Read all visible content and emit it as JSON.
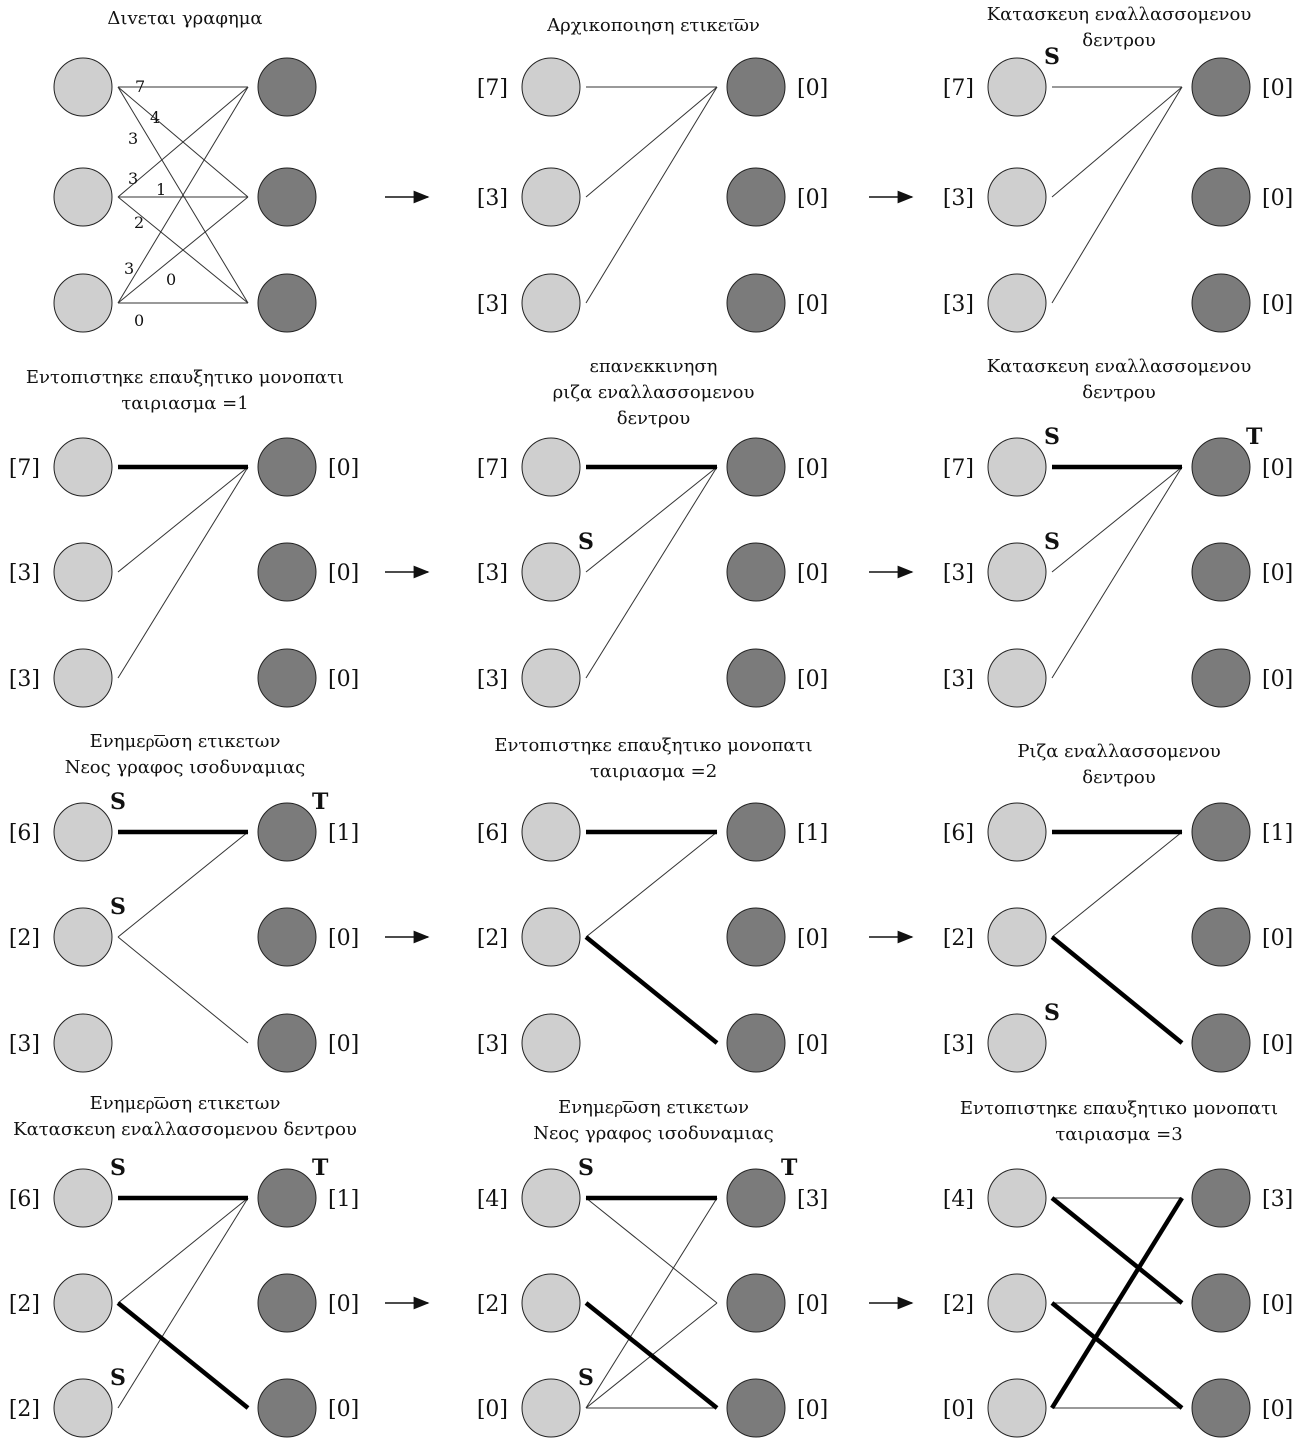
{
  "colors": {
    "left_node": "#cfcfcf",
    "right_node": "#7b7b7b",
    "stroke": "#222222",
    "thin_edge": "#333333",
    "thick_edge": "#000000"
  },
  "panels": [
    {
      "title": [
        "Διvεται γραφημα"
      ],
      "left_labels": [
        "",
        "",
        ""
      ],
      "right_labels": [
        "",
        "",
        ""
      ],
      "weights": [
        "7",
        "4",
        "3",
        "3",
        "1",
        "2",
        "3",
        "0",
        "0"
      ],
      "thin_edges": [
        [
          0,
          0
        ],
        [
          0,
          1
        ],
        [
          0,
          2
        ],
        [
          1,
          0
        ],
        [
          1,
          1
        ],
        [
          1,
          2
        ],
        [
          2,
          0
        ],
        [
          2,
          1
        ],
        [
          2,
          2
        ]
      ],
      "thick_edges": [],
      "marks": []
    },
    {
      "title": [
        "Αρχικοποιηση ετικετ͞ων"
      ],
      "left_labels": [
        "[7]",
        "[3]",
        "[3]"
      ],
      "right_labels": [
        "[0]",
        "[0]",
        "[0]"
      ],
      "thin_edges": [
        [
          0,
          0
        ],
        [
          1,
          0
        ],
        [
          2,
          0
        ]
      ],
      "thick_edges": [],
      "marks": []
    },
    {
      "title": [
        "Κατασκευη εναλλασσομενου",
        "δεντρου"
      ],
      "left_labels": [
        "[7]",
        "[3]",
        "[3]"
      ],
      "right_labels": [
        "[0]",
        "[0]",
        "[0]"
      ],
      "thin_edges": [
        [
          0,
          0
        ],
        [
          1,
          0
        ],
        [
          2,
          0
        ]
      ],
      "thick_edges": [],
      "marks": [
        {
          "side": "L",
          "row": 0,
          "text": "S"
        }
      ]
    },
    {
      "title": [
        "Εντοπιστηκε επαυξητικο μονοπατι",
        "ταιριασμα =1"
      ],
      "left_labels": [
        "[7]",
        "[3]",
        "[3]"
      ],
      "right_labels": [
        "[0]",
        "[0]",
        "[0]"
      ],
      "thin_edges": [
        [
          1,
          0
        ],
        [
          2,
          0
        ]
      ],
      "thick_edges": [
        [
          0,
          0
        ]
      ],
      "marks": []
    },
    {
      "title": [
        "επανεκκινηση",
        "ριζα εναλλασσομενου",
        "δεντρου"
      ],
      "left_labels": [
        "[7]",
        "[3]",
        "[3]"
      ],
      "right_labels": [
        "[0]",
        "[0]",
        "[0]"
      ],
      "thin_edges": [
        [
          1,
          0
        ],
        [
          2,
          0
        ]
      ],
      "thick_edges": [
        [
          0,
          0
        ]
      ],
      "marks": [
        {
          "side": "L",
          "row": 1,
          "text": "S"
        }
      ]
    },
    {
      "title": [
        "Κατασκευη εναλλασσομενου",
        "δεντρου"
      ],
      "left_labels": [
        "[7]",
        "[3]",
        "[3]"
      ],
      "right_labels": [
        "[0]",
        "[0]",
        "[0]"
      ],
      "thin_edges": [
        [
          1,
          0
        ],
        [
          2,
          0
        ]
      ],
      "thick_edges": [
        [
          0,
          0
        ]
      ],
      "marks": [
        {
          "side": "L",
          "row": 0,
          "text": "S"
        },
        {
          "side": "L",
          "row": 1,
          "text": "S"
        },
        {
          "side": "R",
          "row": 0,
          "text": "T"
        }
      ]
    },
    {
      "title": [
        "Ενημερ͞ωση ετικετων",
        "Νεος γραφος ισοδυναμιας"
      ],
      "left_labels": [
        "[6]",
        "[2]",
        "[3]"
      ],
      "right_labels": [
        "[1]",
        "[0]",
        "[0]"
      ],
      "thin_edges": [
        [
          1,
          0
        ],
        [
          1,
          2
        ]
      ],
      "thick_edges": [
        [
          0,
          0
        ]
      ],
      "marks": [
        {
          "side": "L",
          "row": 0,
          "text": "S"
        },
        {
          "side": "L",
          "row": 1,
          "text": "S"
        },
        {
          "side": "R",
          "row": 0,
          "text": "T"
        }
      ]
    },
    {
      "title": [
        "Εντοπιστηκε επαυξητικο μονοπατι",
        "ταιριασμα =2"
      ],
      "left_labels": [
        "[6]",
        "[2]",
        "[3]"
      ],
      "right_labels": [
        "[1]",
        "[0]",
        "[0]"
      ],
      "thin_edges": [
        [
          1,
          0
        ]
      ],
      "thick_edges": [
        [
          0,
          0
        ],
        [
          1,
          2
        ]
      ],
      "marks": []
    },
    {
      "title": [
        "Ριζα εναλλασσομενου",
        "δεντρου"
      ],
      "left_labels": [
        "[6]",
        "[2]",
        "[3]"
      ],
      "right_labels": [
        "[1]",
        "[0]",
        "[0]"
      ],
      "thin_edges": [
        [
          1,
          0
        ]
      ],
      "thick_edges": [
        [
          0,
          0
        ],
        [
          1,
          2
        ]
      ],
      "marks": [
        {
          "side": "L",
          "row": 2,
          "text": "S"
        }
      ]
    },
    {
      "title": [
        "Ενημερ͞ωση ετικετων",
        "Κατασκευη εναλλασσομενου   δεντρου"
      ],
      "left_labels": [
        "[6]",
        "[2]",
        "[2]"
      ],
      "right_labels": [
        "[1]",
        "[0]",
        "[0]"
      ],
      "thin_edges": [
        [
          1,
          0
        ],
        [
          2,
          0
        ]
      ],
      "thick_edges": [
        [
          0,
          0
        ],
        [
          1,
          2
        ]
      ],
      "marks": [
        {
          "side": "L",
          "row": 0,
          "text": "S"
        },
        {
          "side": "L",
          "row": 2,
          "text": "S"
        },
        {
          "side": "R",
          "row": 0,
          "text": "T"
        }
      ]
    },
    {
      "title": [
        "Ενημερ͞ωση ετικετων",
        "Νεος γραφος ισοδυναμιας"
      ],
      "left_labels": [
        "[4]",
        "[2]",
        "[0]"
      ],
      "right_labels": [
        "[3]",
        "[0]",
        "[0]"
      ],
      "thin_edges": [
        [
          0,
          1
        ],
        [
          2,
          0
        ],
        [
          2,
          1
        ],
        [
          2,
          2
        ]
      ],
      "thick_edges": [
        [
          0,
          0
        ],
        [
          1,
          2
        ]
      ],
      "marks": [
        {
          "side": "L",
          "row": 0,
          "text": "S"
        },
        {
          "side": "L",
          "row": 2,
          "text": "S"
        },
        {
          "side": "R",
          "row": 0,
          "text": "T"
        }
      ]
    },
    {
      "title": [
        "Εντοπιστηκε επαυξητικο μονοπατι",
        "ταιριασμα =3"
      ],
      "left_labels": [
        "[4]",
        "[2]",
        "[0]"
      ],
      "right_labels": [
        "[3]",
        "[0]",
        "[0]"
      ],
      "thin_edges": [
        [
          0,
          0
        ],
        [
          1,
          1
        ],
        [
          2,
          2
        ]
      ],
      "thick_edges": [
        [
          0,
          1
        ],
        [
          1,
          2
        ],
        [
          2,
          0
        ]
      ],
      "marks": []
    }
  ],
  "arrows": [
    {
      "row": 0,
      "col": 0
    },
    {
      "row": 0,
      "col": 1
    },
    {
      "row": 1,
      "col": 0
    },
    {
      "row": 1,
      "col": 1
    },
    {
      "row": 2,
      "col": 0
    },
    {
      "row": 2,
      "col": 1
    },
    {
      "row": 3,
      "col": 0
    },
    {
      "row": 3,
      "col": 1
    }
  ]
}
